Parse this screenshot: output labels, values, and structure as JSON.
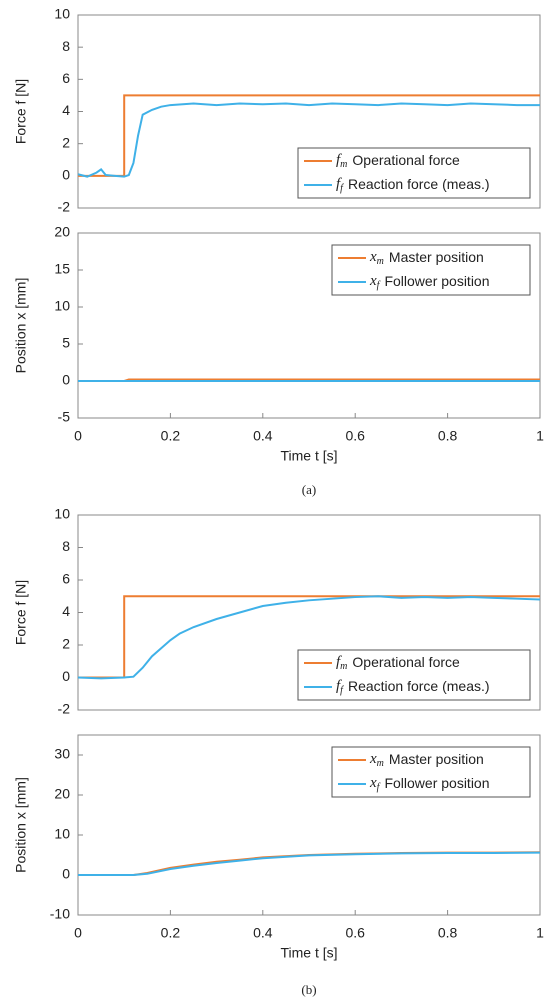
{
  "chart_data": [
    {
      "type": "line",
      "ylabel": "Force f [N]",
      "xlim": [
        0,
        1
      ],
      "ylim": [
        -2,
        10
      ],
      "yticks": [
        -2,
        0,
        2,
        4,
        6,
        8,
        10
      ],
      "legend": "lower right",
      "series": [
        {
          "symbol": "f",
          "subscript": "m",
          "name": "Operational force",
          "color": "#ed7d31",
          "x": [
            0,
            0.1,
            0.1,
            1
          ],
          "values": [
            0,
            0,
            5,
            5
          ]
        },
        {
          "symbol": "f",
          "subscript": "f",
          "name": "Reaction force (meas.)",
          "color": "#3fb1e8",
          "x": [
            0,
            0.02,
            0.04,
            0.05,
            0.06,
            0.08,
            0.1,
            0.11,
            0.12,
            0.13,
            0.14,
            0.16,
            0.18,
            0.2,
            0.25,
            0.3,
            0.35,
            0.4,
            0.45,
            0.5,
            0.55,
            0.6,
            0.65,
            0.7,
            0.75,
            0.8,
            0.85,
            0.9,
            0.95,
            1
          ],
          "values": [
            0.1,
            -0.05,
            0.2,
            0.4,
            0.05,
            0,
            -0.05,
            0.05,
            0.8,
            2.5,
            3.8,
            4.1,
            4.3,
            4.4,
            4.5,
            4.4,
            4.5,
            4.45,
            4.5,
            4.4,
            4.5,
            4.45,
            4.4,
            4.5,
            4.45,
            4.4,
            4.5,
            4.45,
            4.4,
            4.4
          ]
        }
      ]
    },
    {
      "type": "line",
      "ylabel": "Position x [mm]",
      "xlabel": "Time t [s]",
      "xlim": [
        0,
        1
      ],
      "xticks": [
        0,
        0.2,
        0.4,
        0.6,
        0.8,
        1
      ],
      "ylim": [
        -5,
        20
      ],
      "yticks": [
        -5,
        0,
        5,
        10,
        15,
        20
      ],
      "legend": "upper right",
      "series": [
        {
          "symbol": "x",
          "subscript": "m",
          "name": "Master position",
          "color": "#ed7d31",
          "x": [
            0,
            0.1,
            0.11,
            1
          ],
          "values": [
            0,
            0,
            0.2,
            0.2
          ]
        },
        {
          "symbol": "x",
          "subscript": "f",
          "name": "Follower position",
          "color": "#3fb1e8",
          "x": [
            0,
            1
          ],
          "values": [
            0,
            0
          ]
        }
      ]
    },
    {
      "type": "line",
      "ylabel": "Force f [N]",
      "xlim": [
        0,
        1
      ],
      "ylim": [
        -2,
        10
      ],
      "yticks": [
        -2,
        0,
        2,
        4,
        6,
        8,
        10
      ],
      "legend": "lower right",
      "series": [
        {
          "symbol": "f",
          "subscript": "m",
          "name": "Operational force",
          "color": "#ed7d31",
          "x": [
            0,
            0.1,
            0.1,
            1
          ],
          "values": [
            0,
            0,
            5,
            5
          ]
        },
        {
          "symbol": "f",
          "subscript": "f",
          "name": "Reaction force (meas.)",
          "color": "#3fb1e8",
          "x": [
            0,
            0.05,
            0.1,
            0.12,
            0.14,
            0.16,
            0.18,
            0.2,
            0.22,
            0.25,
            0.3,
            0.35,
            0.4,
            0.45,
            0.5,
            0.55,
            0.6,
            0.65,
            0.7,
            0.75,
            0.8,
            0.85,
            0.9,
            0.95,
            1
          ],
          "values": [
            0,
            -0.05,
            0,
            0.05,
            0.6,
            1.3,
            1.8,
            2.3,
            2.7,
            3.1,
            3.6,
            4.0,
            4.4,
            4.6,
            4.75,
            4.85,
            4.95,
            5.0,
            4.9,
            4.95,
            4.9,
            4.95,
            4.9,
            4.85,
            4.8
          ]
        }
      ]
    },
    {
      "type": "line",
      "ylabel": "Position x [mm]",
      "xlabel": "Time t [s]",
      "xlim": [
        0,
        1
      ],
      "xticks": [
        0,
        0.2,
        0.4,
        0.6,
        0.8,
        1
      ],
      "ylim": [
        -10,
        35
      ],
      "yticks": [
        -10,
        0,
        10,
        20,
        30
      ],
      "legend": "upper right",
      "series": [
        {
          "symbol": "x",
          "subscript": "m",
          "name": "Master position",
          "color": "#ed7d31",
          "x": [
            0,
            0.12,
            0.15,
            0.2,
            0.25,
            0.3,
            0.35,
            0.4,
            0.5,
            0.6,
            0.7,
            0.8,
            0.9,
            1
          ],
          "values": [
            0,
            0,
            0.5,
            1.8,
            2.6,
            3.3,
            3.8,
            4.4,
            5.0,
            5.3,
            5.5,
            5.6,
            5.6,
            5.7
          ]
        },
        {
          "symbol": "x",
          "subscript": "f",
          "name": "Follower position",
          "color": "#3fb1e8",
          "x": [
            0,
            0.12,
            0.15,
            0.2,
            0.25,
            0.3,
            0.35,
            0.4,
            0.5,
            0.6,
            0.7,
            0.8,
            0.9,
            1
          ],
          "values": [
            0,
            0,
            0.3,
            1.5,
            2.3,
            3.0,
            3.6,
            4.2,
            4.9,
            5.2,
            5.4,
            5.5,
            5.5,
            5.6
          ]
        }
      ]
    }
  ],
  "captions": [
    "(a)",
    "(b)"
  ]
}
